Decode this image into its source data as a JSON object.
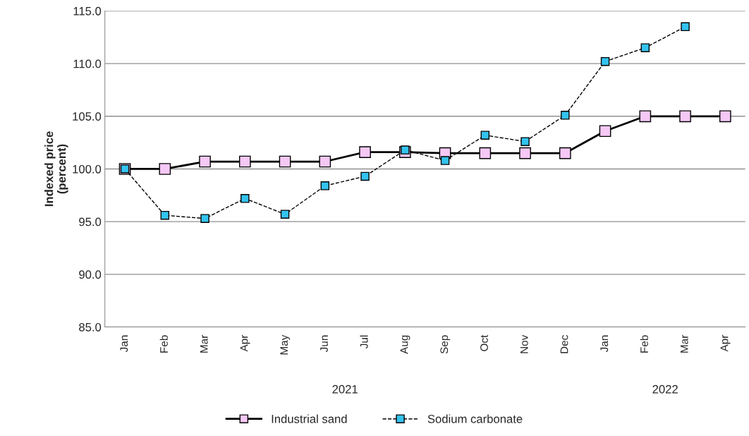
{
  "chart_data": {
    "type": "line",
    "ylabel": "Indexed price\n(percent)",
    "categories": [
      "Jan",
      "Feb",
      "Mar",
      "Apr",
      "May",
      "Jun",
      "Jul",
      "Aug",
      "Sep",
      "Oct",
      "Nov",
      "Dec",
      "Jan",
      "Feb",
      "Mar",
      "Apr"
    ],
    "series": [
      {
        "name": "Industrial sand",
        "color": "#f5c8f5",
        "line_style": "solid",
        "values": [
          100.0,
          100.0,
          100.7,
          100.7,
          100.7,
          100.7,
          101.6,
          101.6,
          101.5,
          101.5,
          101.5,
          101.5,
          103.6,
          105.0,
          105.0,
          105.0
        ]
      },
      {
        "name": "Sodium carbonate",
        "color": "#33c3ef",
        "line_style": "dashed",
        "values": [
          100.0,
          95.6,
          95.3,
          97.2,
          95.7,
          98.4,
          99.3,
          101.8,
          100.8,
          103.2,
          102.6,
          105.1,
          110.2,
          111.5,
          113.5,
          null
        ]
      }
    ],
    "annotations": [
      "2021",
      "2022"
    ],
    "ylim": [
      85,
      115
    ],
    "yticks": [
      {
        "value": 85,
        "label": "85.0"
      },
      {
        "value": 90,
        "label": "90.0"
      },
      {
        "value": 95,
        "label": "95.0"
      },
      {
        "value": 100,
        "label": "100.0"
      },
      {
        "value": 105,
        "label": "105.0"
      },
      {
        "value": 110,
        "label": "110.0"
      },
      {
        "value": 115,
        "label": "115.0"
      }
    ],
    "grid": "y",
    "legend": "bottom",
    "marker": "square"
  }
}
